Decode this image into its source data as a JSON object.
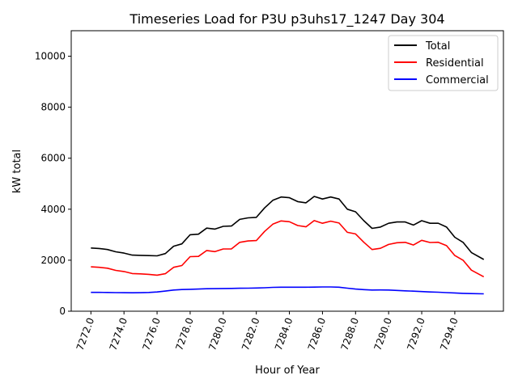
{
  "chart_data": {
    "type": "line",
    "title": "Timeseries Load for P3U p3uhs17_1247  Day 304",
    "xlabel": "Hour of Year",
    "ylabel": "kW total",
    "xlim": [
      7270.81,
      7296.94
    ],
    "ylim": [
      0,
      11000
    ],
    "grid": false,
    "legend_position": "top-right",
    "x_ticks": [
      7272,
      7274,
      7276,
      7278,
      7280,
      7282,
      7284,
      7286,
      7288,
      7290,
      7292,
      7294
    ],
    "x_tick_labels": [
      "7272.0",
      "7274.0",
      "7276.0",
      "7278.0",
      "7280.0",
      "7282.0",
      "7284.0",
      "7286.0",
      "7288.0",
      "7290.0",
      "7292.0",
      "7294.0"
    ],
    "y_ticks": [
      0,
      2000,
      4000,
      6000,
      8000,
      10000
    ],
    "y_tick_labels": [
      "0",
      "2000",
      "4000",
      "6000",
      "8000",
      "10000"
    ],
    "x": [
      7272,
      7272.5,
      7273,
      7273.5,
      7274,
      7274.5,
      7275,
      7275.5,
      7276,
      7276.5,
      7277,
      7277.5,
      7278,
      7278.5,
      7279,
      7279.5,
      7280,
      7280.5,
      7281,
      7281.5,
      7282,
      7282.5,
      7283,
      7283.5,
      7284,
      7284.5,
      7285,
      7285.5,
      7286,
      7286.5,
      7287,
      7287.5,
      7288,
      7288.5,
      7289,
      7289.5,
      7290,
      7290.5,
      7291,
      7291.5,
      7292,
      7292.5,
      7293,
      7293.5,
      7294,
      7294.5,
      7295,
      7295.75
    ],
    "series": [
      {
        "name": "Total",
        "color": "#000000",
        "values": [
          2480,
          2460,
          2420,
          2330,
          2280,
          2200,
          2190,
          2180,
          2170,
          2260,
          2550,
          2640,
          3000,
          3020,
          3260,
          3220,
          3330,
          3340,
          3600,
          3660,
          3680,
          4050,
          4350,
          4480,
          4450,
          4300,
          4250,
          4500,
          4400,
          4480,
          4400,
          4000,
          3900,
          3550,
          3250,
          3300,
          3450,
          3500,
          3500,
          3380,
          3550,
          3450,
          3450,
          3300,
          2900,
          2700,
          2300,
          2030
        ]
      },
      {
        "name": "Residential",
        "color": "#ff0000",
        "values": [
          1740,
          1722,
          1685,
          1600,
          1555,
          1478,
          1465,
          1445,
          1415,
          1470,
          1720,
          1790,
          2140,
          2150,
          2380,
          2335,
          2440,
          2445,
          2700,
          2755,
          2770,
          3130,
          3415,
          3540,
          3510,
          3360,
          3310,
          3555,
          3450,
          3530,
          3460,
          3095,
          3030,
          2705,
          2420,
          2465,
          2620,
          2685,
          2700,
          2595,
          2780,
          2695,
          2705,
          2570,
          2185,
          2000,
          1610,
          1350
        ]
      },
      {
        "name": "Commercial",
        "color": "#0000ff",
        "values": [
          740,
          738,
          735,
          730,
          725,
          722,
          725,
          735,
          755,
          790,
          830,
          850,
          860,
          870,
          880,
          885,
          890,
          895,
          900,
          905,
          910,
          920,
          935,
          940,
          940,
          940,
          940,
          945,
          950,
          950,
          940,
          905,
          870,
          845,
          830,
          835,
          830,
          815,
          800,
          785,
          770,
          755,
          745,
          730,
          715,
          700,
          690,
          680
        ]
      }
    ]
  }
}
